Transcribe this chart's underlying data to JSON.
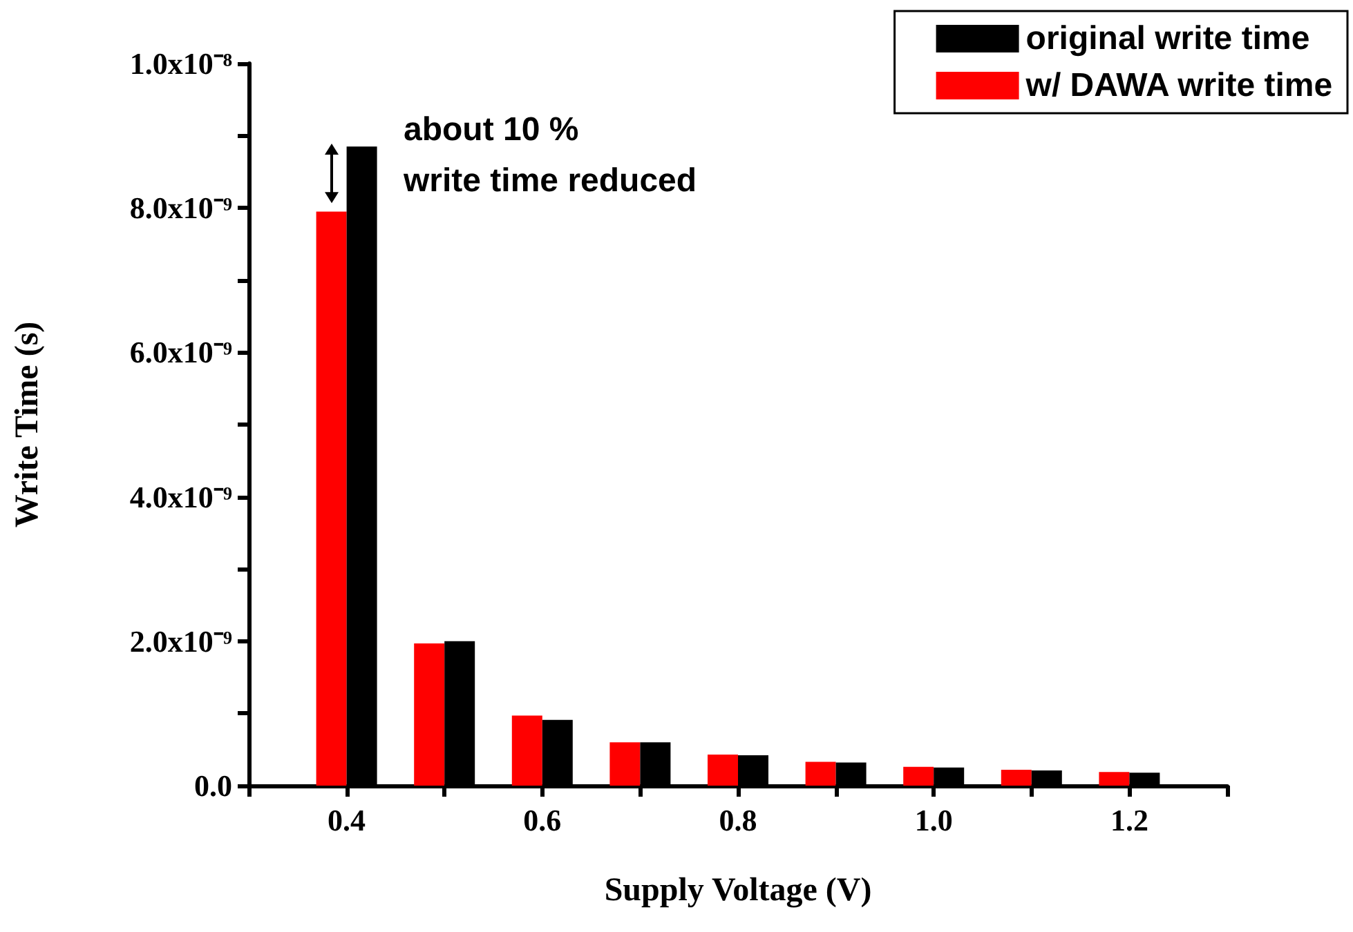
{
  "chart_data": {
    "type": "bar",
    "xlabel": "Supply Voltage (V)",
    "ylabel": "Write Time (s)",
    "x": [
      0.4,
      0.5,
      0.6,
      0.7,
      0.8,
      0.9,
      1.0,
      1.1,
      1.2
    ],
    "series": [
      {
        "name": "w/ DAWA write time",
        "color": "#ff0000",
        "values": [
          7.95e-09,
          1.97e-09,
          9.7e-10,
          6e-10,
          4.3e-10,
          3.3e-10,
          2.6e-10,
          2.2e-10,
          1.9e-10
        ]
      },
      {
        "name": "original write time",
        "color": "#000000",
        "values": [
          8.85e-09,
          2e-09,
          9.1e-10,
          6e-10,
          4.2e-10,
          3.2e-10,
          2.5e-10,
          2.1e-10,
          1.8e-10
        ]
      }
    ],
    "xlim": [
      0.3,
      1.3
    ],
    "xticks": [
      {
        "value": 0.3,
        "label": null
      },
      0.4,
      {
        "value": 0.5,
        "label": null
      },
      0.6,
      {
        "value": 0.7,
        "label": null
      },
      0.8,
      {
        "value": 0.9,
        "label": null
      },
      {
        "value": 1.0,
        "label": "1.0"
      },
      {
        "value": 1.1,
        "label": null
      },
      1.2,
      {
        "value": 1.3,
        "label": null
      }
    ],
    "ylim": [
      0,
      1e-08
    ],
    "yticks": [
      {
        "value": 0,
        "label": "0.0"
      },
      {
        "value": 1e-09,
        "label": null
      },
      {
        "value": 2e-09,
        "label": "2.0x10⁻⁹"
      },
      {
        "value": 3e-09,
        "label": null
      },
      {
        "value": 4e-09,
        "label": "4.0x10⁻⁹"
      },
      {
        "value": 5e-09,
        "label": null
      },
      {
        "value": 6e-09,
        "label": "6.0x10⁻⁹"
      },
      {
        "value": 7e-09,
        "label": null
      },
      {
        "value": 8e-09,
        "label": "8.0x10⁻⁹"
      },
      {
        "value": 9e-09,
        "label": null
      },
      {
        "value": 1e-08,
        "label": "1.0x10⁻⁸"
      }
    ],
    "annotations": [
      "about 10 %",
      "write time reduced"
    ],
    "legend": "top right",
    "grid": false
  }
}
